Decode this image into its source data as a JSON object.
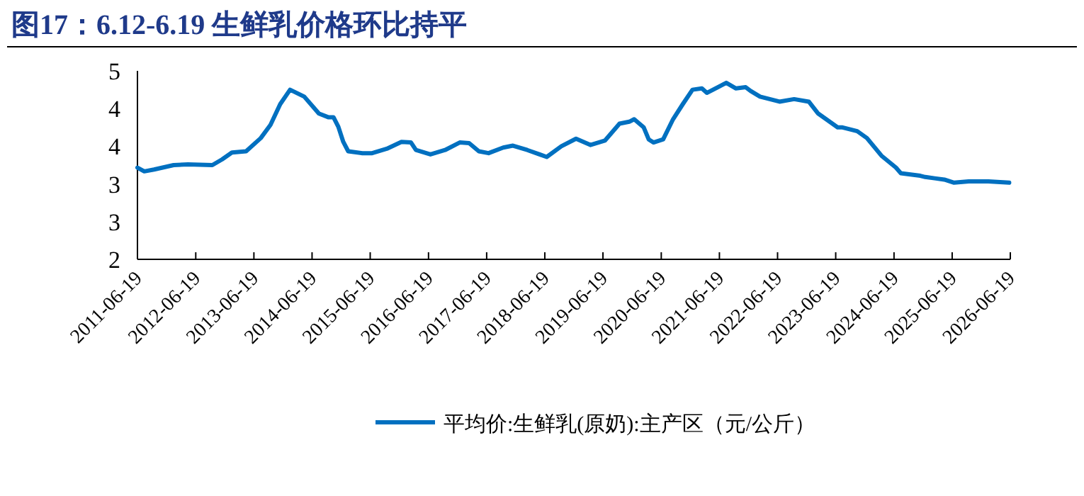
{
  "chart_data": {
    "type": "line",
    "title": "图17：6.12-6.19 生鲜乳价格环比持平",
    "x": [
      "2011-06-19",
      "2011-08",
      "2011-10",
      "2012-02",
      "2012-05",
      "2012-10",
      "2012-12",
      "2013-02",
      "2013-05",
      "2013-08",
      "2013-10",
      "2013-12",
      "2014-02",
      "2014-05",
      "2014-08",
      "2014-10",
      "2014-11",
      "2014-12",
      "2015-01",
      "2015-02",
      "2015-05",
      "2015-07",
      "2015-10",
      "2016-01",
      "2016-03",
      "2016-04",
      "2016-07",
      "2016-10",
      "2017-01",
      "2017-03",
      "2017-05",
      "2017-07",
      "2017-10",
      "2017-12",
      "2018-03",
      "2018-07",
      "2018-10",
      "2019-01",
      "2019-04",
      "2019-07",
      "2019-10",
      "2019-12",
      "2020-01",
      "2020-03",
      "2020-04",
      "2020-05",
      "2020-07",
      "2020-09",
      "2020-11",
      "2021-01",
      "2021-03",
      "2021-04",
      "2021-08",
      "2021-10",
      "2021-12",
      "2022-01",
      "2022-03",
      "2022-07",
      "2022-10",
      "2023-01",
      "2023-03",
      "2023-07",
      "2023-08",
      "2023-11",
      "2024-01",
      "2024-04",
      "2024-07",
      "2024-08",
      "2024-12",
      "2025-01",
      "2025-03",
      "2025-05",
      "2025-07",
      "2025-10",
      "2026-02",
      "2026-06-12"
    ],
    "series": [
      {
        "name": "平均价:生鲜乳(原奶):主产区（元/公斤）",
        "color": "#0070c0",
        "values": [
          3.46,
          3.4,
          3.43,
          3.5,
          3.51,
          3.5,
          3.59,
          3.7,
          3.72,
          3.93,
          4.14,
          4.47,
          4.7,
          4.59,
          4.32,
          4.26,
          4.26,
          4.11,
          3.87,
          3.72,
          3.69,
          3.69,
          3.76,
          3.87,
          3.86,
          3.74,
          3.67,
          3.74,
          3.86,
          3.85,
          3.72,
          3.69,
          3.78,
          3.81,
          3.74,
          3.63,
          3.8,
          3.92,
          3.82,
          3.89,
          4.16,
          4.19,
          4.23,
          4.1,
          3.91,
          3.86,
          3.91,
          4.23,
          4.47,
          4.7,
          4.72,
          4.65,
          4.81,
          4.72,
          4.74,
          4.68,
          4.59,
          4.51,
          4.55,
          4.51,
          4.32,
          4.1,
          4.1,
          4.04,
          3.93,
          3.65,
          3.46,
          3.37,
          3.33,
          3.31,
          3.29,
          3.27,
          3.22,
          3.24,
          3.24,
          3.22
        ]
      }
    ],
    "xlim": [
      "2011-06-19",
      "2026-06-19"
    ],
    "xticks": [
      "2011-06-19",
      "2012-06-19",
      "2013-06-19",
      "2014-06-19",
      "2015-06-19",
      "2016-06-19",
      "2017-06-19",
      "2018-06-19",
      "2019-06-19",
      "2020-06-19",
      "2021-06-19",
      "2022-06-19",
      "2023-06-19",
      "2024-06-19",
      "2025-06-19",
      "2026-06-19"
    ],
    "ylim": [
      2,
      5
    ],
    "yticks": [
      2,
      {
        "value": 2.6,
        "label": "3"
      },
      {
        "value": 3.2,
        "label": "3"
      },
      {
        "value": 3.8,
        "label": "4"
      },
      {
        "value": 4.4,
        "label": "4"
      },
      5
    ],
    "legend": "bottom"
  }
}
